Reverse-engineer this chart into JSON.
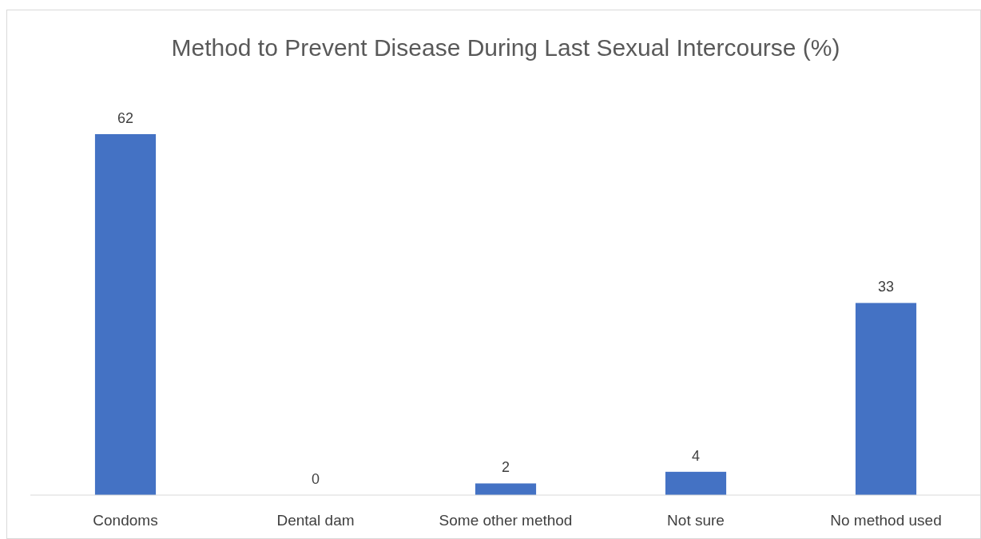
{
  "chart_data": {
    "type": "bar",
    "title": "Method to Prevent Disease During Last Sexual Intercourse (%)",
    "categories": [
      "Condoms",
      "Dental dam",
      "Some other method",
      "Not sure",
      "No method used"
    ],
    "values": [
      62,
      0,
      2,
      4,
      33
    ],
    "color": "#4472c4",
    "data_labels": true
  }
}
